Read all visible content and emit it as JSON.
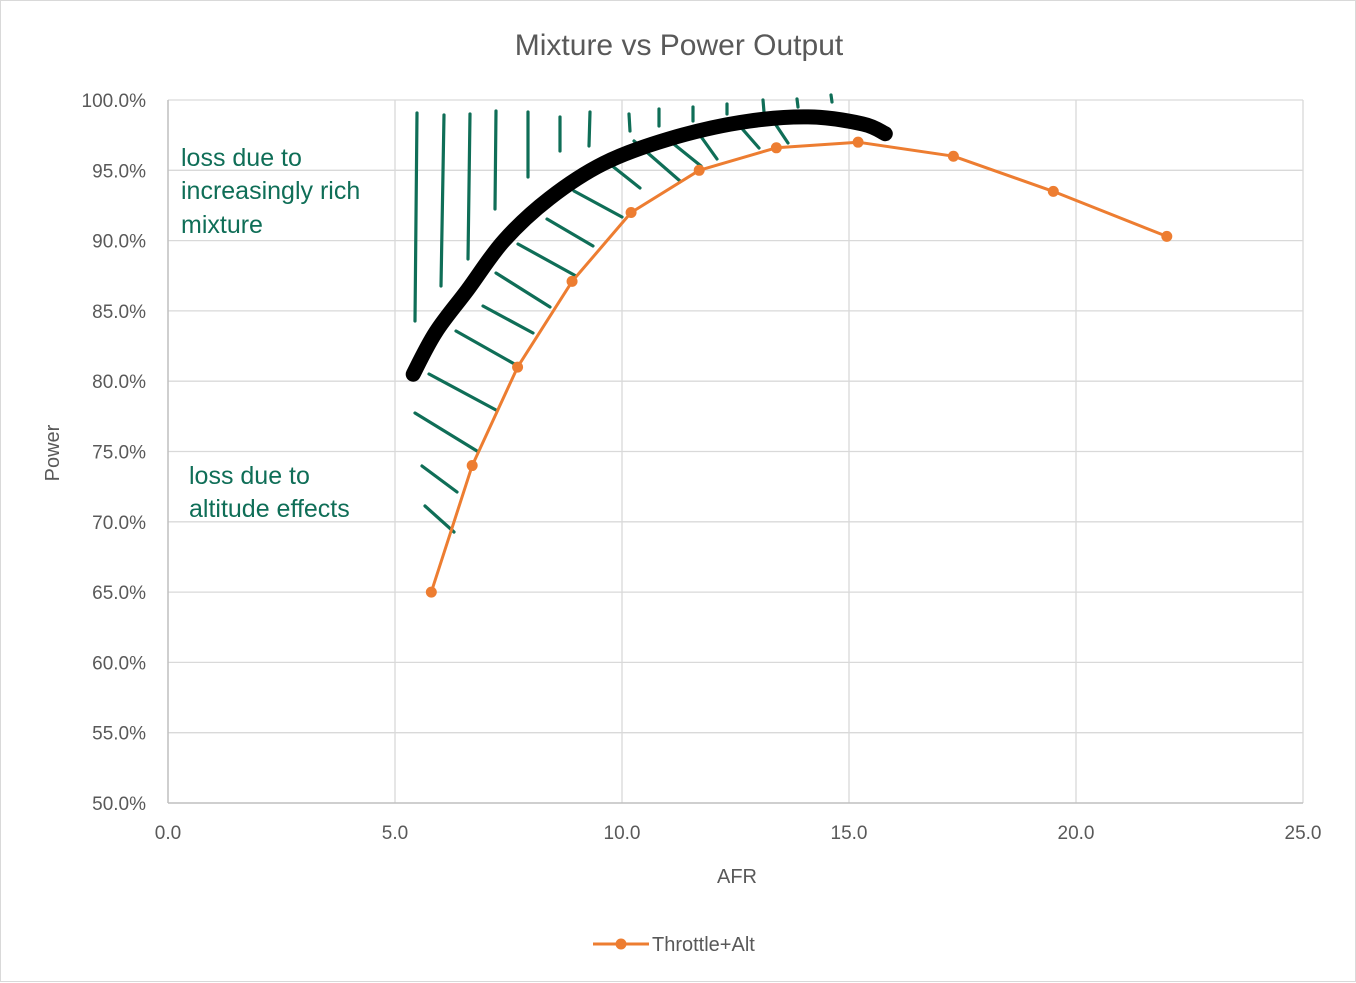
{
  "chart_data": {
    "type": "line",
    "title": "Mixture vs Power Output",
    "xlabel": "AFR",
    "ylabel": "Power",
    "xlim": [
      0,
      25
    ],
    "ylim": [
      50,
      100
    ],
    "x_ticks": [
      "0.0",
      "5.0",
      "10.0",
      "15.0",
      "20.0",
      "25.0"
    ],
    "y_ticks": [
      "50.0%",
      "55.0%",
      "60.0%",
      "65.0%",
      "70.0%",
      "75.0%",
      "80.0%",
      "85.0%",
      "90.0%",
      "95.0%",
      "100.0%"
    ],
    "grid": true,
    "legend_position": "bottom",
    "series": [
      {
        "name": "Throttle+Alt",
        "color": "#ed7d31",
        "marker": "circle",
        "x": [
          5.8,
          6.7,
          7.7,
          8.9,
          10.2,
          11.7,
          13.4,
          15.2,
          17.3,
          19.5,
          22.0
        ],
        "y": [
          65.0,
          74.0,
          81.0,
          87.1,
          92.0,
          95.0,
          96.6,
          97.0,
          96.0,
          93.5,
          90.3
        ]
      }
    ],
    "annotations": {
      "envelope_curve": {
        "color": "#000000",
        "x": [
          5.4,
          5.9,
          6.6,
          7.4,
          8.4,
          9.6,
          11.0,
          12.6,
          14.1,
          15.3,
          15.8
        ],
        "y": [
          80.5,
          83.5,
          86.5,
          90.0,
          93.0,
          95.5,
          97.2,
          98.4,
          98.8,
          98.3,
          97.6
        ]
      },
      "rich_loss_label": [
        "loss due to",
        "increasingly rich",
        "mixture"
      ],
      "altitude_loss_label": [
        "loss due to",
        "altitude effects"
      ],
      "hatch_color": "#0f6e57"
    }
  }
}
